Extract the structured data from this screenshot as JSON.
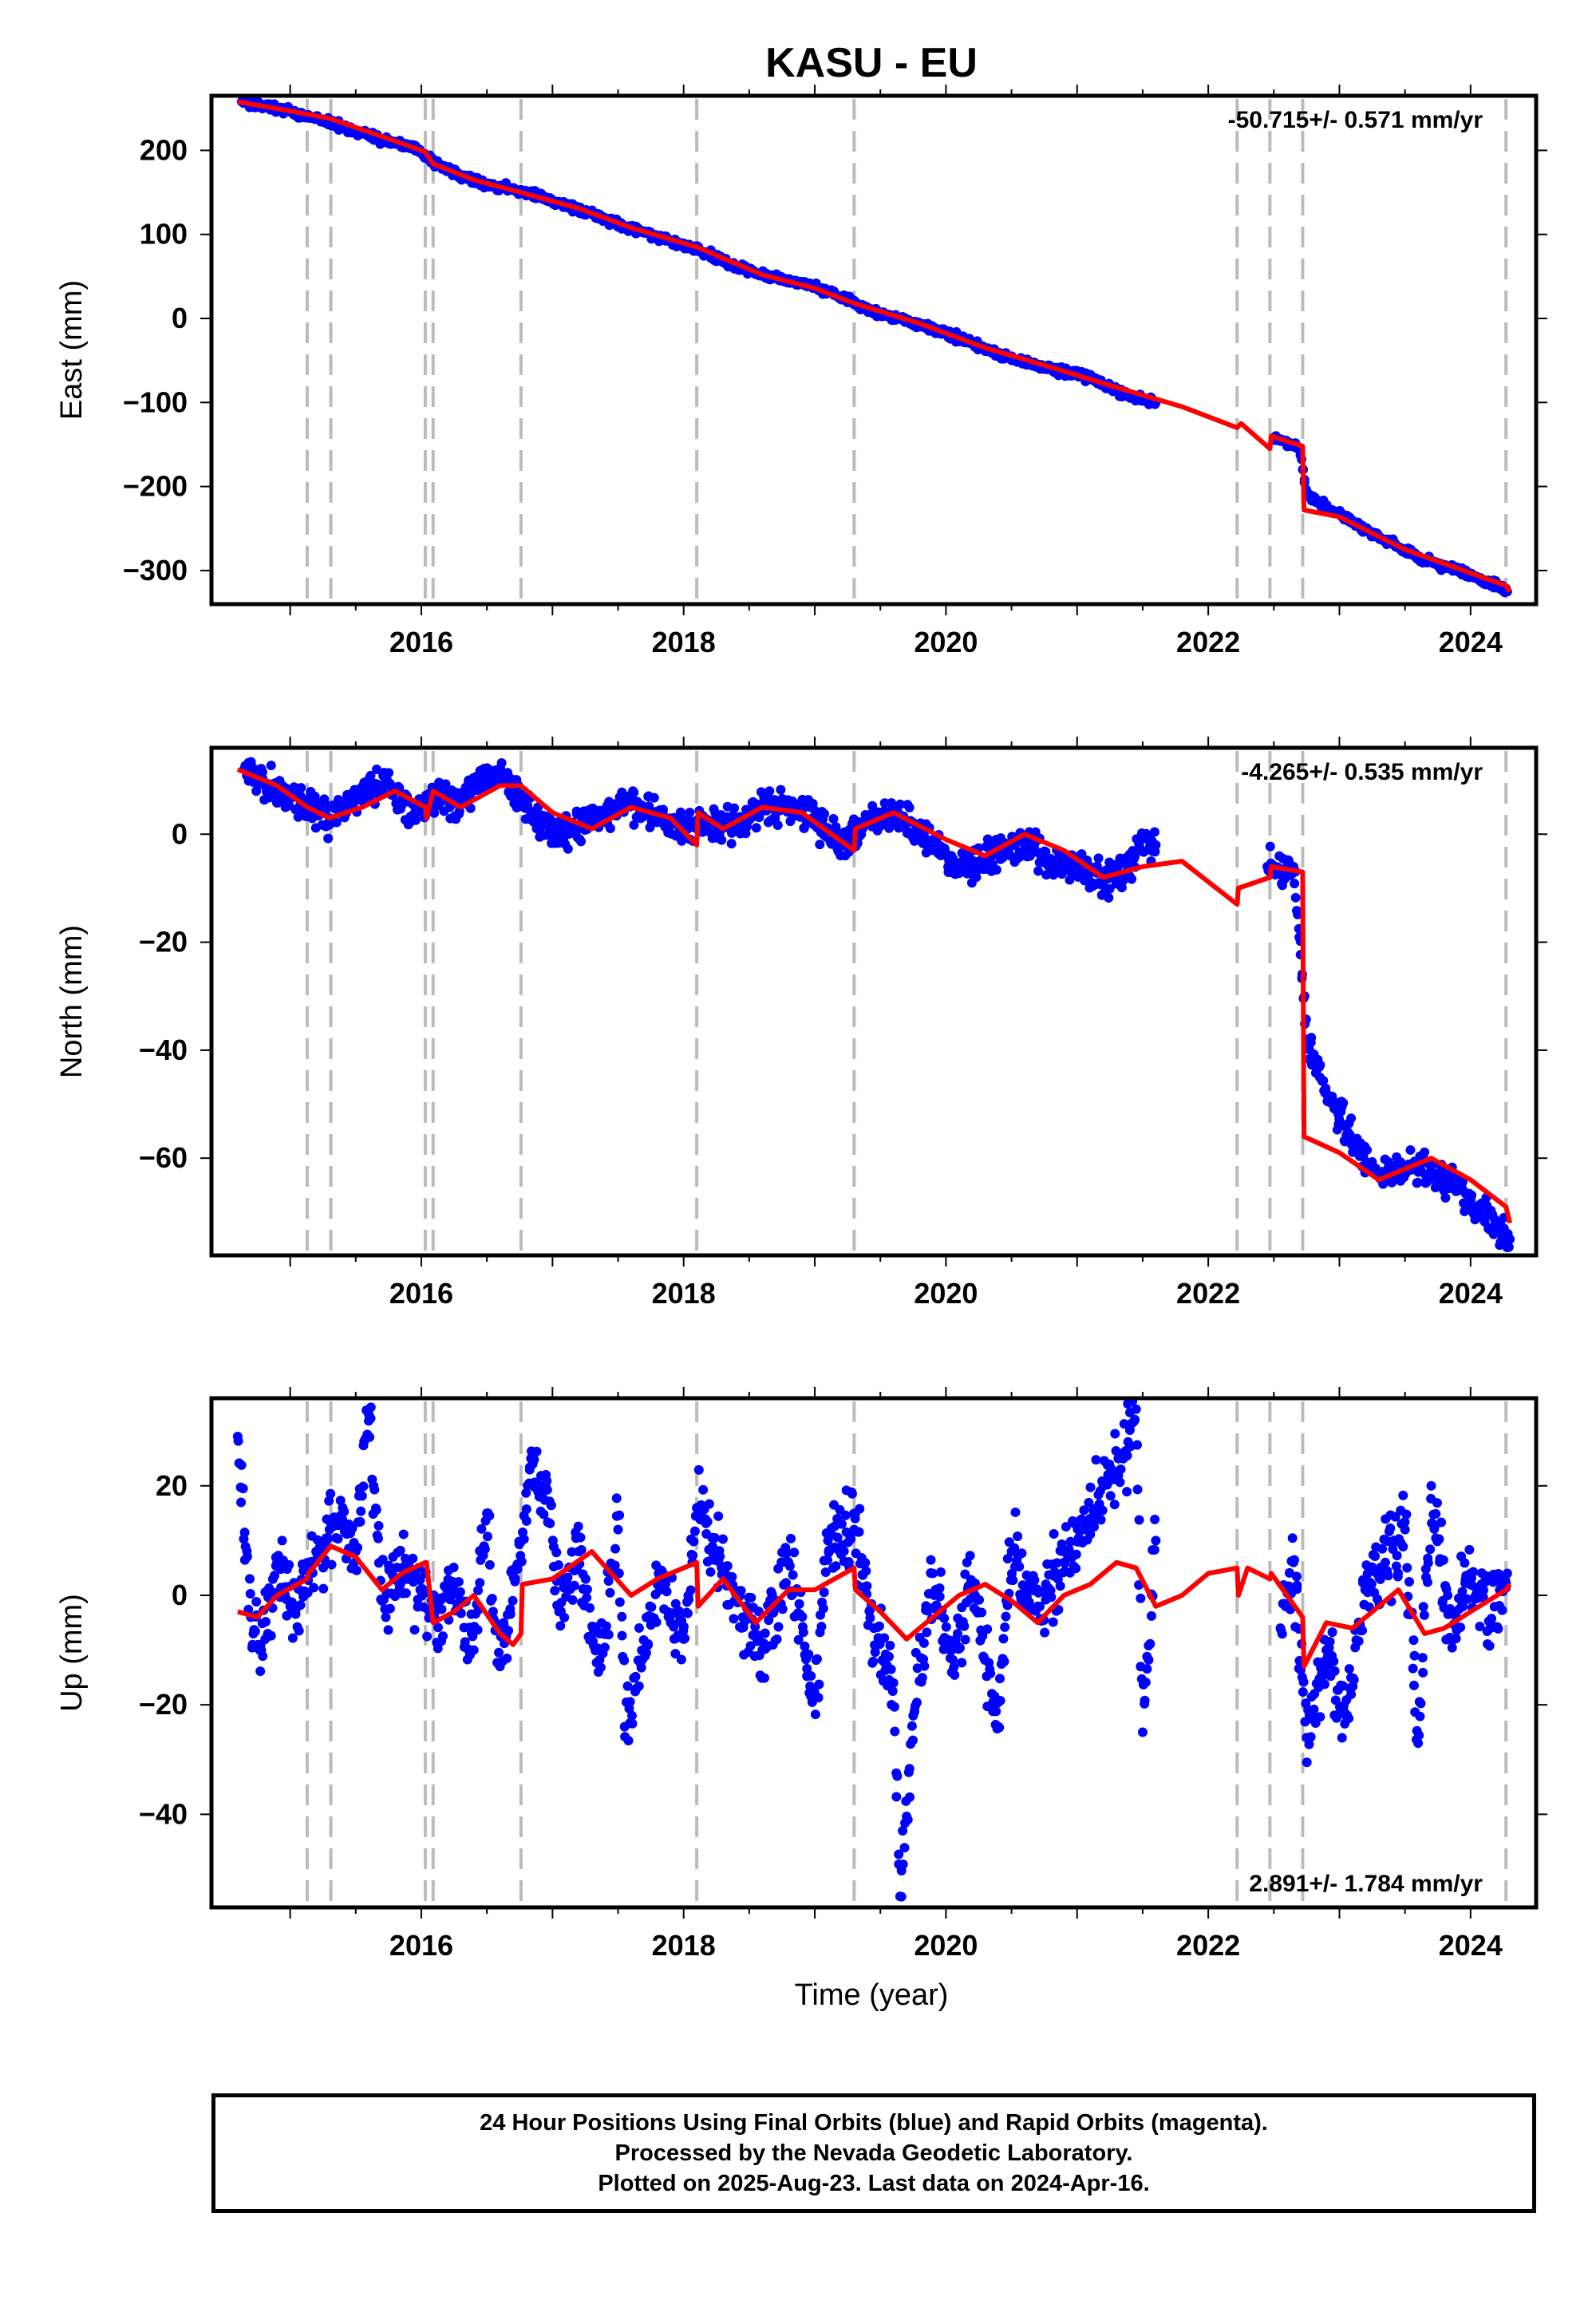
{
  "title": "KASU - EU",
  "xlabel": "Time (year)",
  "x_ticks": [
    "2016",
    "2018",
    "2020",
    "2022",
    "2024"
  ],
  "footer": {
    "line1": "24 Hour Positions Using Final Orbits (blue) and Rapid Orbits (magenta).",
    "line2": "Processed by the Nevada Geodetic Laboratory.",
    "line3": "Plotted on 2025-Aug-23. Last data on 2024-Apr-16."
  },
  "colors": {
    "data_points": "#0000ff",
    "model_line": "#ff0000",
    "event_lines": "#bbbbbb"
  },
  "event_lines": [
    2015.13,
    2015.31,
    2016.03,
    2016.09,
    2016.76,
    2018.1,
    2019.3,
    2022.22,
    2022.47,
    2022.72,
    2024.27
  ],
  "chart_data": [
    {
      "type": "scatter",
      "name": "East",
      "ylabel": "East (mm)",
      "rate_label": "-50.715+/- 0.571 mm/yr",
      "xlim": [
        2014.4,
        2024.5
      ],
      "ylim": [
        -340,
        265
      ],
      "y_ticks": [
        200,
        100,
        0,
        -100,
        -200,
        -300
      ],
      "points": [
        [
          2014.63,
          258
        ],
        [
          2014.7,
          256
        ],
        [
          2014.8,
          254
        ],
        [
          2014.9,
          250
        ],
        [
          2015.0,
          246
        ],
        [
          2015.1,
          241
        ],
        [
          2015.25,
          236
        ],
        [
          2015.4,
          228
        ],
        [
          2015.55,
          220
        ],
        [
          2015.7,
          212
        ],
        [
          2015.85,
          207
        ],
        [
          2015.97,
          202
        ],
        [
          2016.1,
          185
        ],
        [
          2016.2,
          177
        ],
        [
          2016.35,
          166
        ],
        [
          2016.5,
          160
        ],
        [
          2016.65,
          155
        ],
        [
          2016.85,
          148
        ],
        [
          2017.0,
          140
        ],
        [
          2017.2,
          130
        ],
        [
          2017.4,
          118
        ],
        [
          2017.6,
          106
        ],
        [
          2017.8,
          97
        ],
        [
          2018.0,
          88
        ],
        [
          2018.2,
          76
        ],
        [
          2018.4,
          62
        ],
        [
          2018.6,
          52
        ],
        [
          2018.8,
          46
        ],
        [
          2019.0,
          38
        ],
        [
          2019.2,
          26
        ],
        [
          2019.4,
          10
        ],
        [
          2019.6,
          2
        ],
        [
          2019.8,
          -8
        ],
        [
          2020.0,
          -17
        ],
        [
          2020.2,
          -30
        ],
        [
          2020.4,
          -42
        ],
        [
          2020.6,
          -52
        ],
        [
          2020.8,
          -60
        ],
        [
          2021.0,
          -66
        ],
        [
          2021.2,
          -78
        ],
        [
          2021.4,
          -92
        ],
        [
          2021.6,
          -100
        ],
        [
          2022.5,
          -143
        ],
        [
          2022.6,
          -148
        ],
        [
          2022.7,
          -154
        ],
        [
          2022.75,
          -210
        ],
        [
          2022.85,
          -220
        ],
        [
          2023.0,
          -232
        ],
        [
          2023.2,
          -252
        ],
        [
          2023.4,
          -268
        ],
        [
          2023.6,
          -284
        ],
        [
          2023.8,
          -295
        ],
        [
          2024.0,
          -305
        ],
        [
          2024.15,
          -315
        ],
        [
          2024.28,
          -325
        ]
      ],
      "model": [
        [
          2014.6,
          258
        ],
        [
          2015.0,
          247
        ],
        [
          2015.3,
          238
        ],
        [
          2015.6,
          222
        ],
        [
          2016.0,
          200
        ],
        [
          2016.03,
          198
        ],
        [
          2016.09,
          184
        ],
        [
          2016.4,
          165
        ],
        [
          2016.76,
          150
        ],
        [
          2017.2,
          131
        ],
        [
          2017.6,
          108
        ],
        [
          2018.1,
          85
        ],
        [
          2018.6,
          52
        ],
        [
          2019.0,
          36
        ],
        [
          2019.3,
          18
        ],
        [
          2019.8,
          -6
        ],
        [
          2020.3,
          -35
        ],
        [
          2020.8,
          -58
        ],
        [
          2021.3,
          -82
        ],
        [
          2021.8,
          -105
        ],
        [
          2022.22,
          -130
        ],
        [
          2022.25,
          -125
        ],
        [
          2022.47,
          -155
        ],
        [
          2022.48,
          -140
        ],
        [
          2022.72,
          -152
        ],
        [
          2022.73,
          -228
        ],
        [
          2023.0,
          -236
        ],
        [
          2023.5,
          -275
        ],
        [
          2024.0,
          -303
        ],
        [
          2024.27,
          -318
        ],
        [
          2024.3,
          -325
        ]
      ]
    },
    {
      "type": "scatter",
      "name": "North",
      "ylabel": "North (mm)",
      "rate_label": "-4.265+/- 0.535 mm/yr",
      "xlim": [
        2014.4,
        2024.5
      ],
      "ylim": [
        -78,
        16
      ],
      "y_ticks": [
        0,
        -20,
        -40,
        -60
      ],
      "points": [
        [
          2014.65,
          12
        ],
        [
          2014.75,
          10
        ],
        [
          2014.85,
          9
        ],
        [
          2015.0,
          7
        ],
        [
          2015.15,
          5
        ],
        [
          2015.3,
          3
        ],
        [
          2015.45,
          6
        ],
        [
          2015.6,
          9
        ],
        [
          2015.8,
          8
        ],
        [
          2015.95,
          4
        ],
        [
          2016.1,
          8
        ],
        [
          2016.25,
          6
        ],
        [
          2016.4,
          9
        ],
        [
          2016.55,
          11
        ],
        [
          2016.65,
          10
        ],
        [
          2016.85,
          4
        ],
        [
          2017.0,
          0
        ],
        [
          2017.2,
          1
        ],
        [
          2017.4,
          4
        ],
        [
          2017.6,
          6
        ],
        [
          2017.8,
          3
        ],
        [
          2018.0,
          1
        ],
        [
          2018.2,
          2
        ],
        [
          2018.4,
          2
        ],
        [
          2018.6,
          5
        ],
        [
          2018.8,
          5
        ],
        [
          2019.0,
          3
        ],
        [
          2019.2,
          -2
        ],
        [
          2019.4,
          2
        ],
        [
          2019.6,
          4
        ],
        [
          2019.8,
          1
        ],
        [
          2020.0,
          -4
        ],
        [
          2020.2,
          -6
        ],
        [
          2020.4,
          -3
        ],
        [
          2020.6,
          -2
        ],
        [
          2020.8,
          -5
        ],
        [
          2021.0,
          -6
        ],
        [
          2021.2,
          -9
        ],
        [
          2021.4,
          -6
        ],
        [
          2021.5,
          0
        ],
        [
          2021.6,
          -2
        ],
        [
          2022.45,
          -6
        ],
        [
          2022.55,
          -7
        ],
        [
          2022.65,
          -6
        ],
        [
          2022.75,
          -38
        ],
        [
          2022.85,
          -45
        ],
        [
          2022.95,
          -50
        ],
        [
          2023.1,
          -57
        ],
        [
          2023.3,
          -63
        ],
        [
          2023.5,
          -62
        ],
        [
          2023.7,
          -62
        ],
        [
          2023.9,
          -65
        ],
        [
          2024.05,
          -70
        ],
        [
          2024.2,
          -73
        ],
        [
          2024.3,
          -75
        ]
      ],
      "model": [
        [
          2014.6,
          12
        ],
        [
          2014.9,
          9
        ],
        [
          2015.13,
          5
        ],
        [
          2015.3,
          3
        ],
        [
          2015.55,
          5
        ],
        [
          2015.8,
          8
        ],
        [
          2016.03,
          5
        ],
        [
          2016.04,
          3
        ],
        [
          2016.09,
          8
        ],
        [
          2016.3,
          5
        ],
        [
          2016.6,
          9
        ],
        [
          2016.76,
          9
        ],
        [
          2017.0,
          4
        ],
        [
          2017.3,
          1
        ],
        [
          2017.6,
          5
        ],
        [
          2017.9,
          3
        ],
        [
          2018.1,
          -2
        ],
        [
          2018.11,
          4
        ],
        [
          2018.3,
          1
        ],
        [
          2018.6,
          5
        ],
        [
          2018.9,
          4
        ],
        [
          2019.3,
          -3
        ],
        [
          2019.31,
          1
        ],
        [
          2019.6,
          4
        ],
        [
          2020.0,
          -1
        ],
        [
          2020.3,
          -4
        ],
        [
          2020.6,
          0
        ],
        [
          2020.9,
          -3
        ],
        [
          2021.2,
          -8
        ],
        [
          2021.5,
          -6
        ],
        [
          2021.8,
          -5
        ],
        [
          2022.22,
          -13
        ],
        [
          2022.23,
          -10
        ],
        [
          2022.47,
          -8
        ],
        [
          2022.48,
          -6
        ],
        [
          2022.72,
          -7
        ],
        [
          2022.73,
          -56
        ],
        [
          2023.0,
          -59
        ],
        [
          2023.3,
          -64
        ],
        [
          2023.7,
          -60
        ],
        [
          2024.0,
          -64
        ],
        [
          2024.27,
          -69
        ],
        [
          2024.3,
          -72
        ]
      ]
    },
    {
      "type": "scatter",
      "name": "Up",
      "ylabel": "Up (mm)",
      "rate_label": "2.891+/- 1.784 mm/yr",
      "xlim": [
        2014.4,
        2024.5
      ],
      "ylim": [
        -57,
        36
      ],
      "y_ticks": [
        20,
        0,
        -20,
        -40
      ],
      "points": [
        [
          2014.6,
          29
        ],
        [
          2014.7,
          -4
        ],
        [
          2014.78,
          -10
        ],
        [
          2014.9,
          6
        ],
        [
          2015.0,
          -2
        ],
        [
          2015.15,
          4
        ],
        [
          2015.3,
          12
        ],
        [
          2015.4,
          16
        ],
        [
          2015.5,
          8
        ],
        [
          2015.6,
          33
        ],
        [
          2015.7,
          -1
        ],
        [
          2015.85,
          5
        ],
        [
          2016.1,
          -4
        ],
        [
          2016.25,
          2
        ],
        [
          2016.4,
          -10
        ],
        [
          2016.5,
          15
        ],
        [
          2016.6,
          -13
        ],
        [
          2016.85,
          24
        ],
        [
          2016.9,
          18
        ],
        [
          2016.95,
          22
        ],
        [
          2017.05,
          -3
        ],
        [
          2017.2,
          8
        ],
        [
          2017.35,
          -14
        ],
        [
          2017.5,
          12
        ],
        [
          2017.55,
          -24
        ],
        [
          2017.8,
          2
        ],
        [
          2018.0,
          -8
        ],
        [
          2018.1,
          16
        ],
        [
          2018.25,
          8
        ],
        [
          2018.45,
          -4
        ],
        [
          2018.6,
          -10
        ],
        [
          2018.8,
          6
        ],
        [
          2019.0,
          -18
        ],
        [
          2019.1,
          10
        ],
        [
          2019.3,
          12
        ],
        [
          2019.45,
          -6
        ],
        [
          2019.6,
          -16
        ],
        [
          2019.65,
          -55
        ],
        [
          2019.75,
          -22
        ],
        [
          2019.9,
          4
        ],
        [
          2020.05,
          -14
        ],
        [
          2020.2,
          2
        ],
        [
          2020.4,
          -24
        ],
        [
          2020.5,
          8
        ],
        [
          2020.7,
          -2
        ],
        [
          2020.9,
          6
        ],
        [
          2021.05,
          12
        ],
        [
          2021.2,
          20
        ],
        [
          2021.35,
          26
        ],
        [
          2021.45,
          34
        ],
        [
          2021.5,
          -25
        ],
        [
          2021.6,
          10
        ],
        [
          2022.55,
          -6
        ],
        [
          2022.65,
          6
        ],
        [
          2022.75,
          -26
        ],
        [
          2022.9,
          -10
        ],
        [
          2023.05,
          -22
        ],
        [
          2023.2,
          2
        ],
        [
          2023.35,
          6
        ],
        [
          2023.5,
          12
        ],
        [
          2023.6,
          -27
        ],
        [
          2023.7,
          20
        ],
        [
          2023.85,
          -8
        ],
        [
          2024.0,
          4
        ],
        [
          2024.15,
          -6
        ],
        [
          2024.28,
          4
        ]
      ],
      "model": [
        [
          2014.6,
          -3
        ],
        [
          2014.75,
          -4
        ],
        [
          2014.9,
          0
        ],
        [
          2015.13,
          3
        ],
        [
          2015.14,
          4
        ],
        [
          2015.31,
          9
        ],
        [
          2015.5,
          7
        ],
        [
          2015.7,
          1
        ],
        [
          2015.85,
          4
        ],
        [
          2016.03,
          6
        ],
        [
          2016.04,
          6
        ],
        [
          2016.09,
          -5
        ],
        [
          2016.25,
          -3
        ],
        [
          2016.4,
          0
        ],
        [
          2016.6,
          -7
        ],
        [
          2016.7,
          -9
        ],
        [
          2016.76,
          -7
        ],
        [
          2016.77,
          2
        ],
        [
          2017.0,
          3
        ],
        [
          2017.3,
          8
        ],
        [
          2017.6,
          0
        ],
        [
          2017.8,
          3
        ],
        [
          2018.1,
          6
        ],
        [
          2018.11,
          -2
        ],
        [
          2018.3,
          3
        ],
        [
          2018.55,
          -5
        ],
        [
          2018.8,
          1
        ],
        [
          2019.0,
          1
        ],
        [
          2019.3,
          5
        ],
        [
          2019.31,
          1
        ],
        [
          2019.5,
          -3
        ],
        [
          2019.7,
          -8
        ],
        [
          2019.9,
          -4
        ],
        [
          2020.1,
          0
        ],
        [
          2020.3,
          2
        ],
        [
          2020.5,
          -1
        ],
        [
          2020.7,
          -5
        ],
        [
          2020.9,
          0
        ],
        [
          2021.1,
          2
        ],
        [
          2021.3,
          6
        ],
        [
          2021.45,
          5
        ],
        [
          2021.6,
          -2
        ],
        [
          2021.8,
          0
        ],
        [
          2022.0,
          4
        ],
        [
          2022.22,
          5
        ],
        [
          2022.23,
          0
        ],
        [
          2022.3,
          5
        ],
        [
          2022.47,
          3
        ],
        [
          2022.48,
          4
        ],
        [
          2022.72,
          -4
        ],
        [
          2022.73,
          -13
        ],
        [
          2022.9,
          -5
        ],
        [
          2023.1,
          -6
        ],
        [
          2023.3,
          -2
        ],
        [
          2023.45,
          1
        ],
        [
          2023.65,
          -7
        ],
        [
          2023.8,
          -6
        ],
        [
          2024.0,
          -3
        ],
        [
          2024.27,
          1
        ],
        [
          2024.3,
          2
        ]
      ]
    }
  ]
}
